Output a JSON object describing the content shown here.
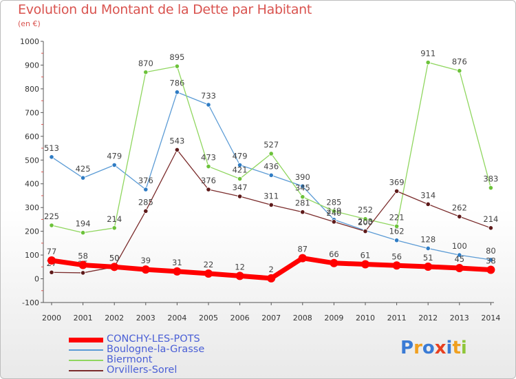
{
  "chart_data": {
    "type": "line",
    "title": "Evolution du Montant de la Dette par Habitant",
    "subtitle": "(en €)",
    "categories": [
      "2000",
      "2001",
      "2002",
      "2003",
      "2004",
      "2005",
      "2006",
      "2007",
      "2008",
      "2009",
      "2010",
      "2011",
      "2012",
      "2013",
      "2014"
    ],
    "ylim": [
      -100,
      1000
    ],
    "yticks": [
      -100,
      0,
      100,
      200,
      300,
      400,
      500,
      600,
      700,
      800,
      900,
      1000
    ],
    "ytick_labels": [
      "-100",
      "0",
      "100",
      "200",
      "300",
      "400",
      "500",
      "600",
      "700",
      "800",
      "900",
      "1000"
    ],
    "grid": false,
    "legend_position": "bottom-left",
    "series": [
      {
        "name": "Boulogne-la-Grasse",
        "color": "#5b9bd5",
        "marker": "#2f7cc4",
        "width": 1.3,
        "values": [
          513,
          425,
          479,
          376,
          786,
          733,
          479,
          436,
          390,
          249,
          203,
          162,
          128,
          100,
          80
        ],
        "labels": [
          "513",
          "425",
          "479",
          "376",
          "786",
          "733",
          "479",
          "436",
          "390",
          "249",
          "203",
          "162",
          "128",
          "100",
          "80"
        ]
      },
      {
        "name": "Biermont",
        "color": "#8fd65e",
        "marker": "#6cc23a",
        "width": 1.3,
        "values": [
          225,
          194,
          214,
          870,
          895,
          473,
          421,
          527,
          345,
          285,
          252,
          221,
          911,
          876,
          383
        ],
        "labels": [
          "225",
          "194",
          "214",
          "870",
          "895",
          "473",
          "421",
          "527",
          "345",
          "285",
          "252",
          "221",
          "911",
          "876",
          "383"
        ]
      },
      {
        "name": "Orvillers-Sorel",
        "color": "#7a2b2b",
        "marker": "#5e1a1a",
        "width": 1.3,
        "values": [
          27,
          25,
          50,
          285,
          543,
          376,
          347,
          311,
          281,
          240,
          200,
          369,
          314,
          262,
          214
        ],
        "labels": [
          "27",
          "25",
          "50",
          "285",
          "543",
          "376",
          "347",
          "311",
          "281",
          "240",
          "200",
          "369",
          "314",
          "262",
          "214"
        ]
      },
      {
        "name": "CONCHY-LES-POTS",
        "color": "#ff0000",
        "marker": "#ff0000",
        "width": 7,
        "values": [
          77,
          58,
          50,
          39,
          31,
          22,
          12,
          2,
          87,
          66,
          61,
          56,
          51,
          45,
          38
        ],
        "labels": [
          "77",
          "58",
          "50",
          "39",
          "31",
          "22",
          "12",
          "2",
          "87",
          "66",
          "61",
          "56",
          "51",
          "45",
          "38"
        ]
      }
    ]
  },
  "legend": {
    "items": [
      {
        "label": "CONCHY-LES-POTS",
        "color": "#ff0000",
        "thick": true
      },
      {
        "label": "Boulogne-la-Grasse",
        "color": "#5b9bd5",
        "thick": false
      },
      {
        "label": "Biermont",
        "color": "#8fd65e",
        "thick": false
      },
      {
        "label": "Orvillers-Sorel",
        "color": "#7a2b2b",
        "thick": false
      }
    ]
  },
  "logo": {
    "letters": [
      "P",
      "r",
      "o",
      "x",
      "i",
      "t",
      "i"
    ],
    "colors": [
      "#3a7bd5",
      "#f0a020",
      "#3a7bd5",
      "#e84020",
      "#3a7bd5",
      "#f0a020",
      "#8fc63a"
    ]
  }
}
